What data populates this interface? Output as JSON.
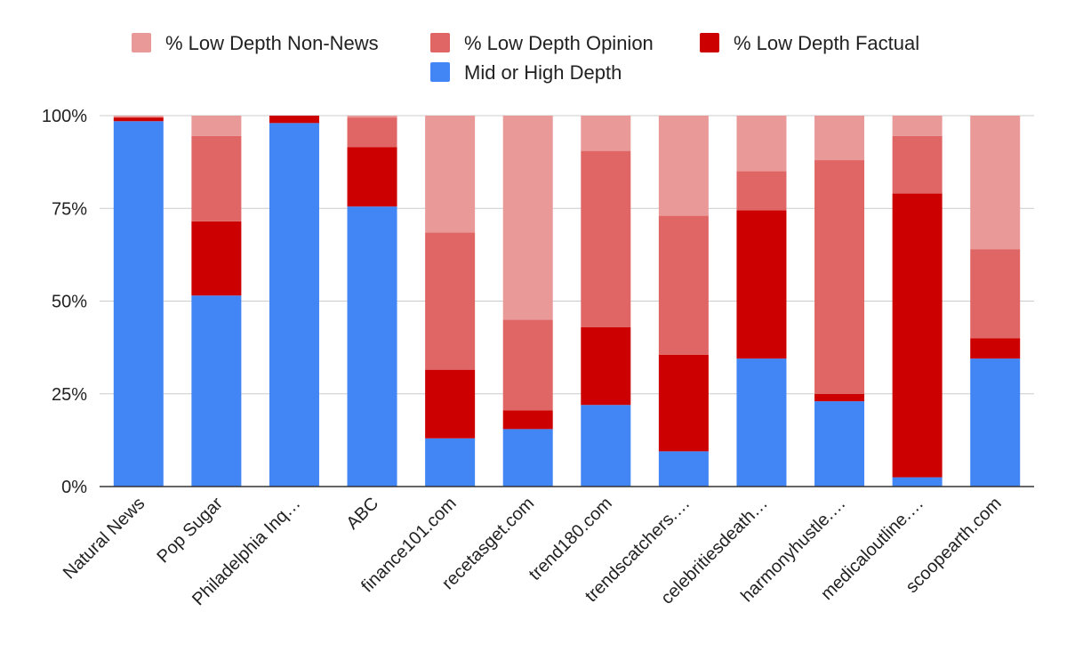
{
  "chart_data": {
    "type": "bar",
    "stacked": true,
    "normalized": true,
    "title": "",
    "xlabel": "",
    "ylabel": "",
    "ylim": [
      0,
      100
    ],
    "yticks": [
      "0%",
      "25%",
      "50%",
      "75%",
      "100%"
    ],
    "legend_position": "top",
    "categories": [
      "Natural News",
      "Pop Sugar",
      "Philadelphia Inq…",
      "ABC",
      "finance101.com",
      "recetasget.com",
      "trend180.com",
      "trendscatchers.…",
      "celebritiesdeath…",
      "harmonyhustle.…",
      "medicaloutline.…",
      "scoopearth.com"
    ],
    "series": [
      {
        "name": "Mid or High Depth",
        "color": "#4285f4",
        "values": [
          98.5,
          51.5,
          98,
          75.5,
          13,
          15.5,
          22,
          9.5,
          34.5,
          23,
          2.5,
          34.5
        ]
      },
      {
        "name": "% Low Depth Factual",
        "color": "#cc0000",
        "values": [
          1,
          20,
          2,
          16,
          18.5,
          5,
          21,
          26,
          40,
          2,
          76.5,
          5.5
        ]
      },
      {
        "name": "% Low Depth Opinion",
        "color": "#e06666",
        "values": [
          0,
          23,
          0,
          8,
          37,
          24.5,
          47.5,
          37.5,
          10.5,
          63,
          15.5,
          24
        ]
      },
      {
        "name": "% Low Depth Non-News",
        "color": "#ea9999",
        "values": [
          0.5,
          5.5,
          0,
          0.5,
          31.5,
          55,
          9.5,
          27,
          15,
          12,
          5.5,
          36
        ]
      }
    ]
  }
}
